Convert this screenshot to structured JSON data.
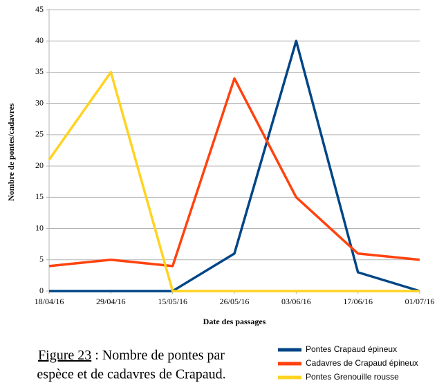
{
  "chart_data": {
    "type": "line",
    "xlabel": "Date des passages",
    "ylabel": "Nombre de pontes/cadavres",
    "categories": [
      "18/04/16",
      "29/04/16",
      "15/05/16",
      "26/05/16",
      "03/06/16",
      "17/06/16",
      "01/07/16"
    ],
    "series": [
      {
        "name": "Pontes Crapaud épineux",
        "color": "#004586",
        "values": [
          0,
          0,
          0,
          6,
          40,
          3,
          0
        ]
      },
      {
        "name": "Cadavres de Crapaud épineux",
        "color": "#ff420e",
        "values": [
          4,
          5,
          4,
          34,
          15,
          6,
          5
        ]
      },
      {
        "name": "Pontes Grenouille rousse",
        "color": "#ffd320",
        "values": [
          21,
          35,
          0,
          0,
          0,
          0,
          0
        ]
      }
    ],
    "ylim": [
      0,
      45
    ],
    "yticks": [
      0,
      5,
      10,
      15,
      20,
      25,
      30,
      35,
      40,
      45
    ],
    "grid": true,
    "legend": "bottom-right"
  },
  "caption": {
    "label": "Figure 23",
    "lines": [
      " : Nombre de pontes par",
      "espèce et de cadavres de Crapaud."
    ]
  }
}
